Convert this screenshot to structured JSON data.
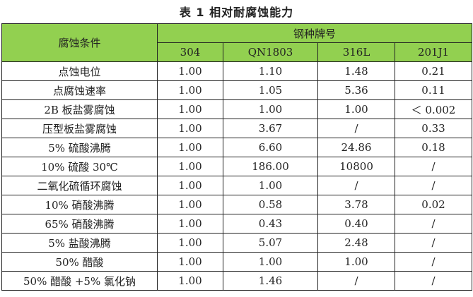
{
  "title": "表 1   相对耐腐蚀能力",
  "table": {
    "row_header": "腐蚀条件",
    "group_header": "钢种牌号",
    "columns": [
      "304",
      "QN1803",
      "316L",
      "201J1"
    ],
    "rows": [
      {
        "label": "点蚀电位",
        "values": [
          "1.00",
          "1.10",
          "1.48",
          "0.21"
        ]
      },
      {
        "label": "点腐蚀速率",
        "values": [
          "1.00",
          "1.05",
          "5.36",
          "0.11"
        ]
      },
      {
        "label": "2B 板盐雾腐蚀",
        "values": [
          "1.00",
          "1.00",
          "1.00",
          "＜ 0.002"
        ]
      },
      {
        "label": "压型板盐雾腐蚀",
        "values": [
          "1.00",
          "3.67",
          "/",
          "0.33"
        ]
      },
      {
        "label": "5% 硫酸沸腾",
        "values": [
          "1.00",
          "6.60",
          "24.86",
          "0.18"
        ]
      },
      {
        "label": "10% 硫酸 30℃",
        "values": [
          "1.00",
          "186.00",
          "10800",
          "/"
        ]
      },
      {
        "label": "二氧化硫循环腐蚀",
        "values": [
          "1.00",
          "1.00",
          "/",
          "/"
        ]
      },
      {
        "label": "10% 硝酸沸腾",
        "values": [
          "1.00",
          "0.58",
          "3.78",
          "0.02"
        ]
      },
      {
        "label": "65% 硝酸沸腾",
        "values": [
          "1.00",
          "0.43",
          "0.40",
          "/"
        ]
      },
      {
        "label": "5% 盐酸沸腾",
        "values": [
          "1.00",
          "5.07",
          "2.48",
          "/"
        ]
      },
      {
        "label": "50% 醋酸",
        "values": [
          "1.00",
          "1.00",
          "1.00",
          "/"
        ]
      },
      {
        "label": "50% 醋酸 +5% 氯化钠",
        "values": [
          "1.00",
          "1.46",
          "/",
          "/"
        ]
      }
    ]
  },
  "colors": {
    "header_bg": "#92d050"
  }
}
